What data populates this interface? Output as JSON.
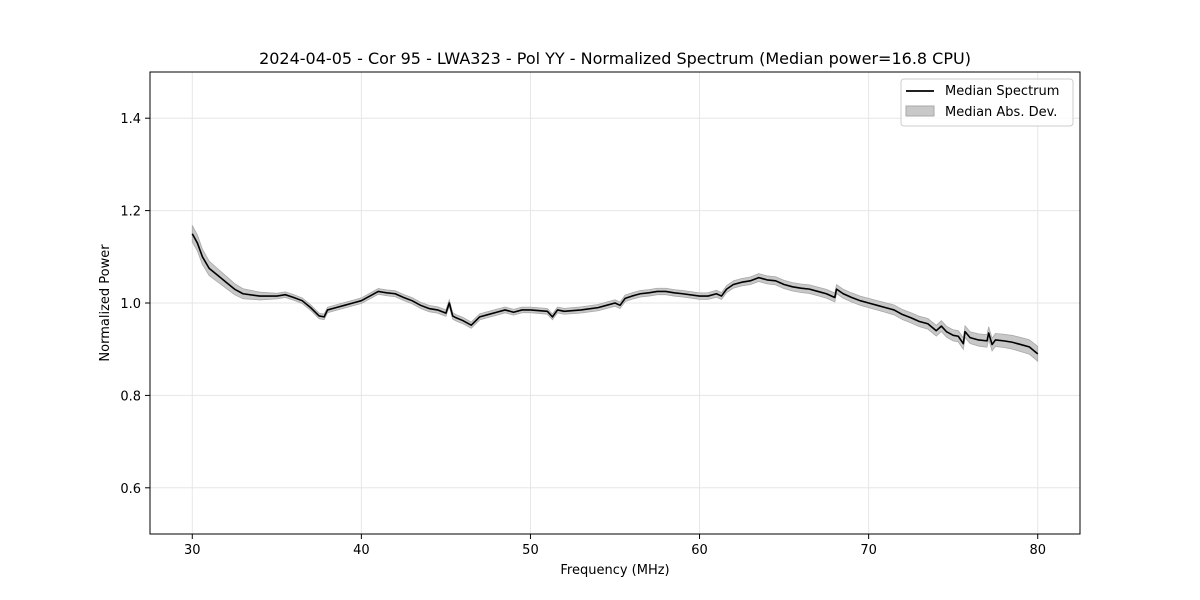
{
  "chart_data": {
    "type": "line",
    "title": "2024-04-05 - Cor 95 - LWA323 - Pol YY - Normalized Spectrum (Median power=16.8 CPU)",
    "xlabel": "Frequency (MHz)",
    "ylabel": "Normalized Power",
    "xlim": [
      27.5,
      82.5
    ],
    "ylim": [
      0.5,
      1.5
    ],
    "xticks": [
      30,
      40,
      50,
      60,
      70,
      80
    ],
    "yticks": [
      0.6,
      0.8,
      1.0,
      1.2,
      1.4
    ],
    "xtick_labels": [
      "30",
      "40",
      "50",
      "60",
      "70",
      "80"
    ],
    "ytick_labels": [
      "0.6",
      "0.8",
      "1.0",
      "1.2",
      "1.4"
    ],
    "grid": true,
    "legend_position": "top-right",
    "legend": [
      "Median Spectrum",
      "Median Abs. Dev."
    ],
    "series": [
      {
        "name": "Median Spectrum",
        "color": "#000000",
        "x": [
          30,
          30.3,
          30.6,
          31,
          31.5,
          32,
          32.5,
          33,
          34,
          35,
          35.5,
          36,
          36.5,
          37,
          37.5,
          37.8,
          38,
          38.5,
          39,
          39.5,
          40,
          40.5,
          41,
          41.5,
          42,
          42.5,
          43,
          43.5,
          44,
          44.5,
          45,
          45.2,
          45.4,
          45.6,
          46,
          46.2,
          46.5,
          47,
          47.5,
          48,
          48.5,
          49,
          49.5,
          50,
          51,
          51.3,
          51.6,
          52,
          53,
          54,
          54.5,
          55,
          55.3,
          55.6,
          56,
          56.5,
          57,
          57.5,
          58,
          58.5,
          59,
          60,
          60.5,
          61,
          61.3,
          61.6,
          62,
          62.5,
          63,
          63.5,
          64,
          64.5,
          65,
          65.5,
          66,
          66.5,
          67,
          67.5,
          68,
          68.1,
          68.5,
          69,
          69.5,
          70,
          70.5,
          71,
          71.5,
          72,
          72.5,
          73,
          73.5,
          74,
          74.3,
          74.6,
          75,
          75.3,
          75.6,
          75.7,
          76,
          76.5,
          77,
          77.1,
          77.3,
          77.5,
          78,
          78.5,
          79,
          79.5,
          80
        ],
        "values": [
          1.15,
          1.13,
          1.1,
          1.075,
          1.06,
          1.045,
          1.03,
          1.02,
          1.015,
          1.015,
          1.018,
          1.012,
          1.005,
          0.99,
          0.972,
          0.97,
          0.985,
          0.99,
          0.995,
          1.0,
          1.005,
          1.015,
          1.025,
          1.022,
          1.02,
          1.012,
          1.005,
          0.995,
          0.988,
          0.985,
          0.978,
          1.0,
          0.972,
          0.968,
          0.962,
          0.958,
          0.952,
          0.97,
          0.975,
          0.98,
          0.985,
          0.98,
          0.985,
          0.985,
          0.982,
          0.97,
          0.985,
          0.982,
          0.985,
          0.99,
          0.995,
          1.0,
          0.995,
          1.01,
          1.015,
          1.02,
          1.022,
          1.025,
          1.025,
          1.022,
          1.02,
          1.015,
          1.015,
          1.02,
          1.015,
          1.03,
          1.04,
          1.045,
          1.048,
          1.055,
          1.05,
          1.048,
          1.04,
          1.035,
          1.032,
          1.03,
          1.025,
          1.02,
          1.012,
          1.03,
          1.02,
          1.012,
          1.005,
          1.0,
          0.995,
          0.99,
          0.985,
          0.975,
          0.968,
          0.96,
          0.955,
          0.94,
          0.95,
          0.938,
          0.93,
          0.928,
          0.912,
          0.938,
          0.925,
          0.92,
          0.918,
          0.935,
          0.91,
          0.92,
          0.918,
          0.915,
          0.91,
          0.905,
          0.89
        ]
      },
      {
        "name": "Median Abs. Dev.",
        "type": "band",
        "color": "#c8c8c8",
        "stroke": "#a8a8a8",
        "x": [
          30,
          35,
          40,
          45,
          50,
          55,
          60,
          65,
          70,
          75,
          80
        ],
        "half_width": [
          0.018,
          0.006,
          0.006,
          0.007,
          0.006,
          0.007,
          0.007,
          0.009,
          0.01,
          0.012,
          0.016
        ]
      }
    ]
  }
}
